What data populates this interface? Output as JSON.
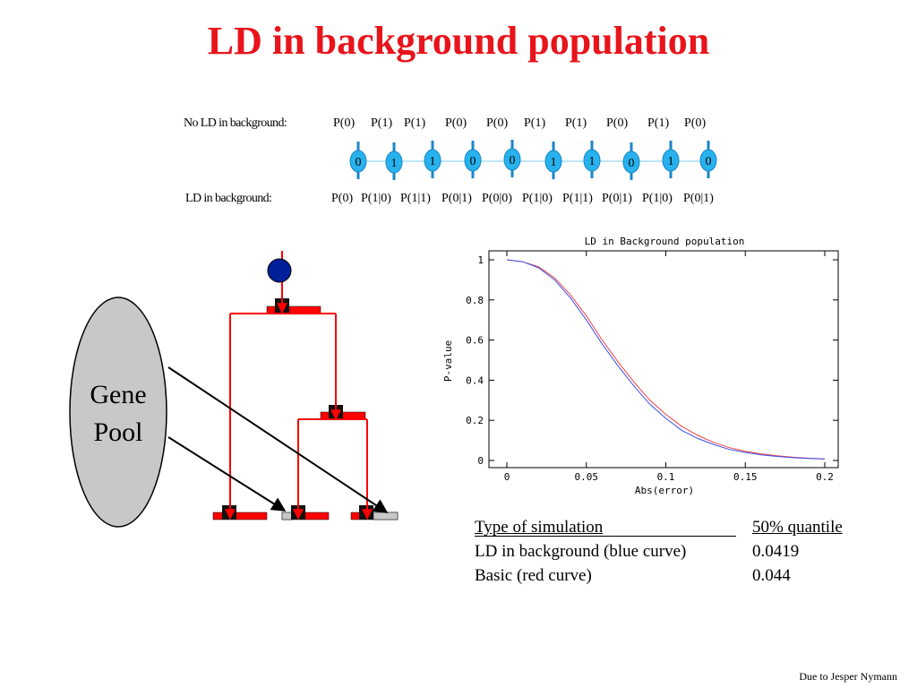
{
  "title": "LD in background population",
  "no_ld": {
    "label": "No LD in background:",
    "probs": [
      "P(0)",
      "P(1)",
      "P(1)",
      "P(0)",
      "P(0)",
      "P(1)",
      "P(1)",
      "P(0)",
      "P(1)",
      "P(0)"
    ]
  },
  "markers": [
    "0",
    "1",
    "1",
    "0",
    "0",
    "1",
    "1",
    "0",
    "1",
    "0"
  ],
  "ld": {
    "label": "LD in background:",
    "probs": [
      "P(0)",
      "P(1|0)",
      "P(1|1)",
      "P(0|1)",
      "P(0|0)",
      "P(1|0)",
      "P(1|1)",
      "P(0|1)",
      "P(1|0)",
      "P(0|1)"
    ]
  },
  "gene_pool": {
    "line1": "Gene",
    "line2": "Pool"
  },
  "colors": {
    "title": "#e8141c",
    "segment": "#ff0000",
    "marker": "#27b2ee",
    "node": "#00209a",
    "pool": "#c8c8c8",
    "blue_curve": "#3b4ff0",
    "red_curve": "#f04040"
  },
  "chart_data": {
    "type": "line",
    "title": "LD in Background population",
    "xlabel": "Abs(error)",
    "ylabel": "P-value",
    "xlim": [
      0,
      0.2
    ],
    "ylim": [
      0,
      1
    ],
    "xticks": [
      "0",
      "0.05",
      "0.1",
      "0.15",
      "0.2"
    ],
    "yticks": [
      "0",
      "0.2",
      "0.4",
      "0.6",
      "0.8",
      "1"
    ],
    "x": [
      0,
      0.01,
      0.02,
      0.03,
      0.04,
      0.05,
      0.06,
      0.07,
      0.08,
      0.09,
      0.1,
      0.11,
      0.12,
      0.13,
      0.14,
      0.15,
      0.16,
      0.17,
      0.18,
      0.19,
      0.2
    ],
    "series": [
      {
        "name": "LD in background (blue curve)",
        "values": [
          1.0,
          0.99,
          0.96,
          0.9,
          0.81,
          0.7,
          0.58,
          0.47,
          0.37,
          0.28,
          0.21,
          0.15,
          0.11,
          0.08,
          0.055,
          0.04,
          0.028,
          0.02,
          0.014,
          0.01,
          0.007
        ]
      },
      {
        "name": "Basic (red curve)",
        "values": [
          1.0,
          0.99,
          0.965,
          0.91,
          0.825,
          0.72,
          0.6,
          0.49,
          0.39,
          0.3,
          0.23,
          0.17,
          0.125,
          0.09,
          0.064,
          0.046,
          0.033,
          0.023,
          0.016,
          0.011,
          0.008
        ]
      }
    ]
  },
  "table": {
    "headers": [
      "Type of simulation",
      "50% quantile"
    ],
    "rows": [
      [
        "LD in background (blue curve)",
        "0.0419"
      ],
      [
        "Basic  (red curve)",
        "0.044"
      ]
    ]
  },
  "footer": "Due to Jesper Nymann"
}
